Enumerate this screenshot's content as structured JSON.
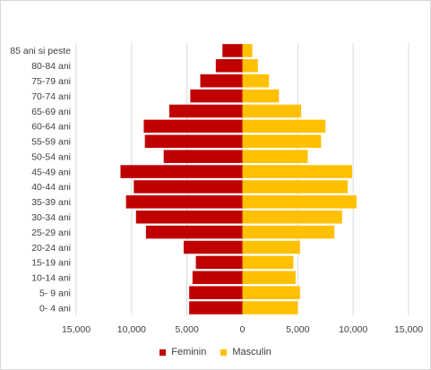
{
  "chart_data": {
    "type": "bar",
    "orientation": "horizontal",
    "layout": "population-pyramid",
    "categories": [
      "85 ani si peste",
      "80-84 ani",
      "75-79 ani",
      "70-74 ani",
      "65-69 ani",
      "60-64 ani",
      "55-59 ani",
      "50-54 ani",
      "45-49 ani",
      "40-44 ani",
      "35-39 ani",
      "30-34 ani",
      "25-29 ani",
      "20-24 ani",
      "15-19 ani",
      "10-14 ani",
      "5- 9 ani",
      "0- 4 ani"
    ],
    "series": [
      {
        "name": "Feminin",
        "color": "#c00000",
        "side": "left",
        "values": [
          1800,
          2400,
          3800,
          4700,
          6600,
          8900,
          8800,
          7100,
          11000,
          9800,
          10500,
          9600,
          8700,
          5300,
          4200,
          4500,
          4800,
          4800
        ]
      },
      {
        "name": "Masculin",
        "color": "#ffc000",
        "side": "right",
        "values": [
          900,
          1400,
          2400,
          3300,
          5300,
          7500,
          7100,
          5900,
          9900,
          9500,
          10300,
          9000,
          8300,
          5200,
          4600,
          4800,
          5200,
          5000
        ]
      }
    ],
    "x_ticks": [
      "15,000",
      "10,000",
      "5,000",
      "0",
      "5,000",
      "10,000",
      "15,000"
    ],
    "xlim": [
      -15000,
      15000
    ],
    "grid": "vertical",
    "legend_position": "bottom"
  }
}
